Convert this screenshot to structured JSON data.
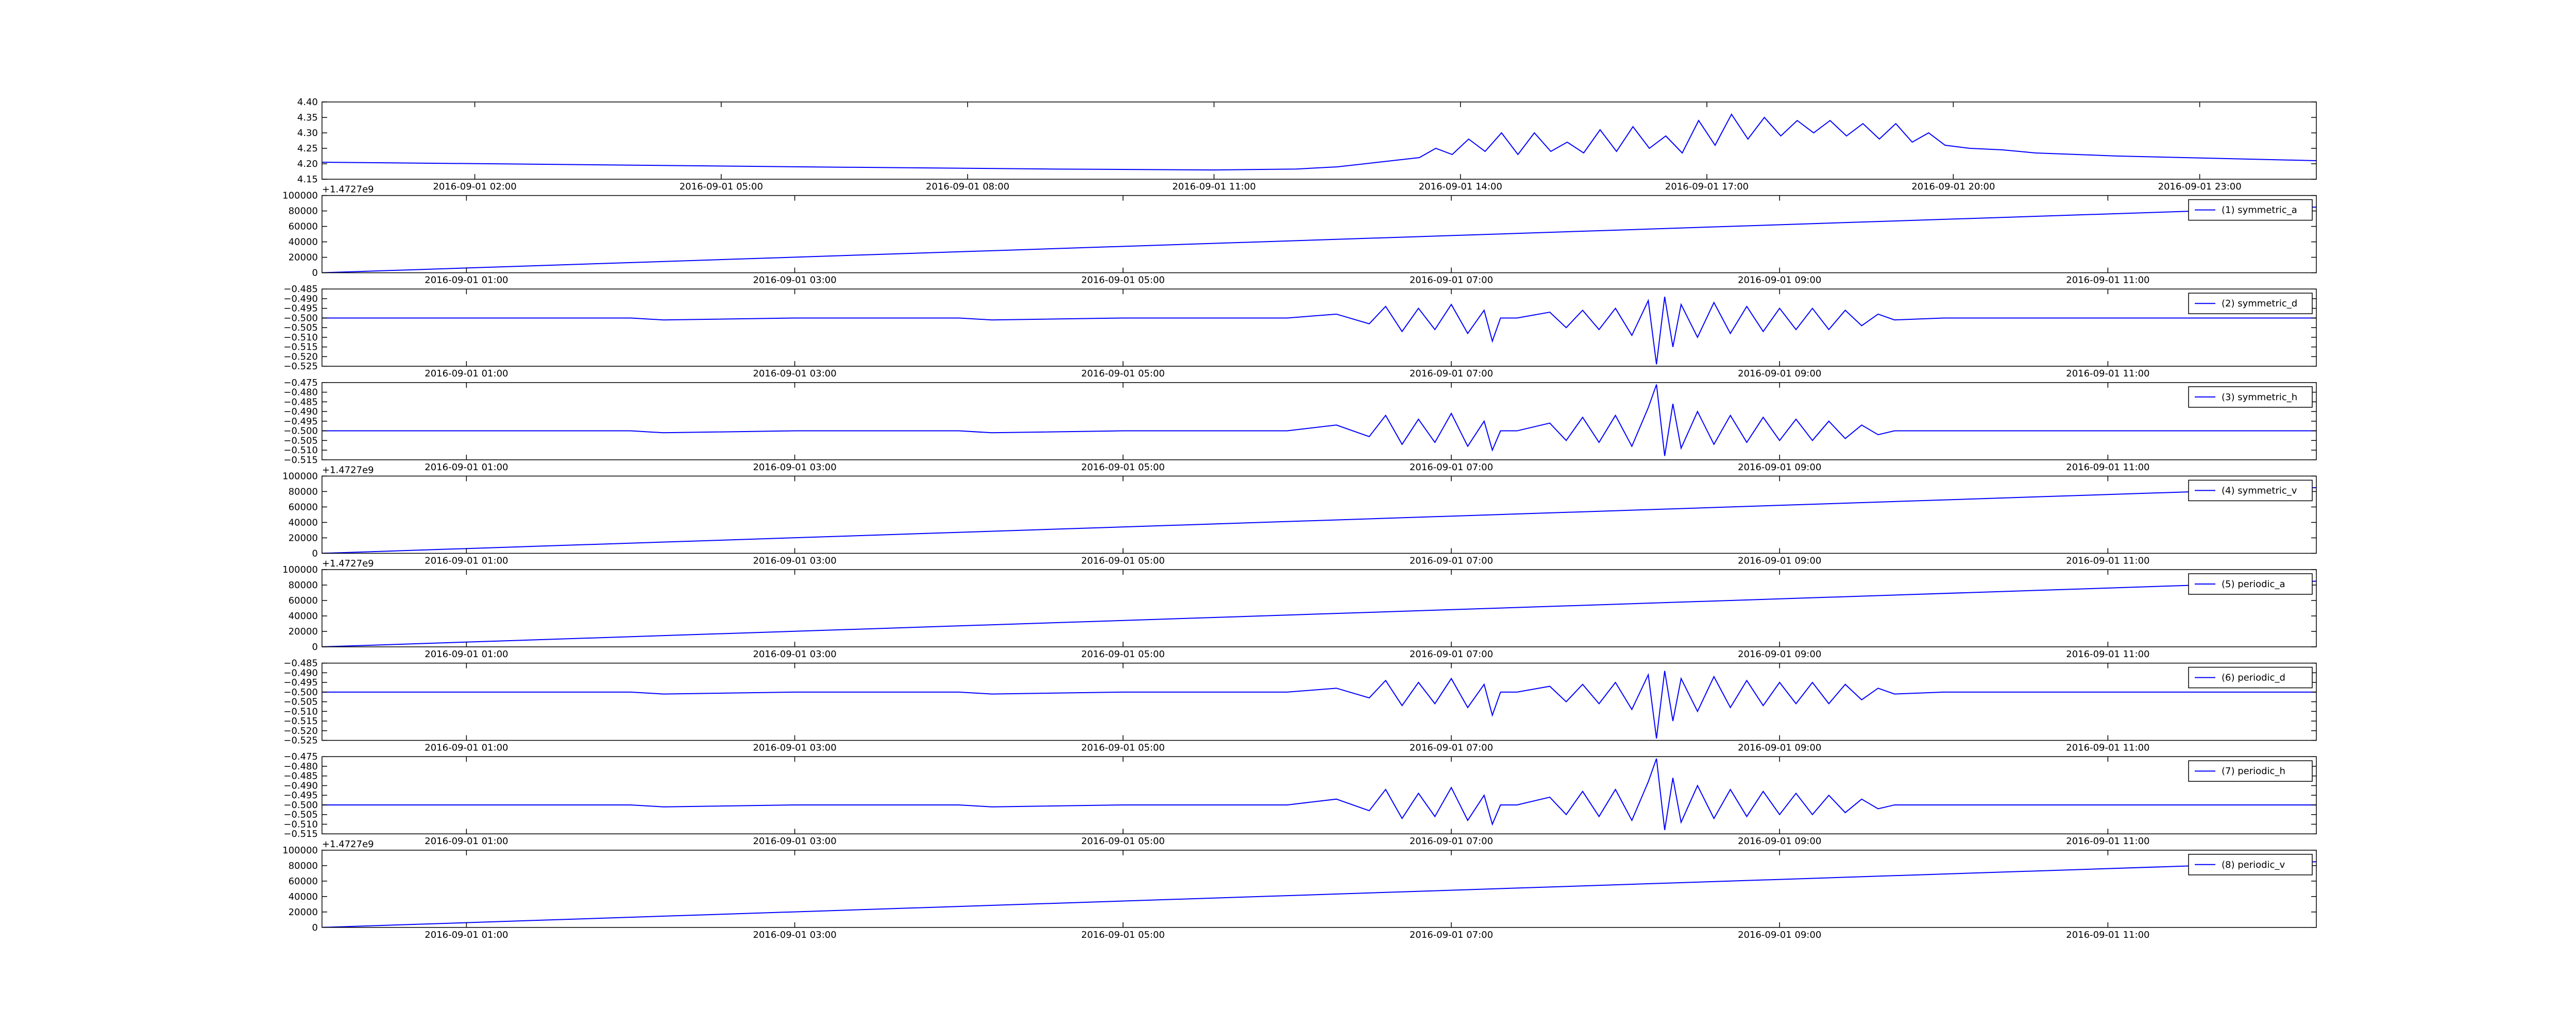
{
  "chart_data": [
    {
      "type": "line",
      "x": [
        0.14,
        3,
        6,
        9,
        11,
        12,
        12.5,
        13,
        13.5,
        13.7,
        13.9,
        14.1,
        14.3,
        14.5,
        14.7,
        14.9,
        15.1,
        15.3,
        15.5,
        15.7,
        15.9,
        16.1,
        16.3,
        16.5,
        16.7,
        16.9,
        17.1,
        17.3,
        17.5,
        17.7,
        17.9,
        18.1,
        18.3,
        18.5,
        18.7,
        18.9,
        19.1,
        19.3,
        19.5,
        19.7,
        19.9,
        20.2,
        20.6,
        21,
        22,
        24.42
      ],
      "series": [
        {
          "color": "#0000ff",
          "values": [
            4.205,
            4.198,
            4.19,
            4.183,
            4.18,
            4.183,
            4.19,
            4.205,
            4.22,
            4.25,
            4.23,
            4.28,
            4.24,
            4.3,
            4.23,
            4.3,
            4.24,
            4.27,
            4.235,
            4.31,
            4.24,
            4.32,
            4.25,
            4.29,
            4.235,
            4.34,
            4.26,
            4.36,
            4.28,
            4.35,
            4.29,
            4.34,
            4.3,
            4.34,
            4.29,
            4.33,
            4.28,
            4.33,
            4.27,
            4.3,
            4.26,
            4.25,
            4.245,
            4.235,
            4.225,
            4.21
          ]
        }
      ],
      "xlim": [
        0.14,
        24.42
      ],
      "ylim": [
        4.15,
        4.4
      ],
      "xticks": [
        {
          "value": 2,
          "label": "2016-09-01 02:00"
        },
        {
          "value": 5,
          "label": "2016-09-01 05:00"
        },
        {
          "value": 8,
          "label": "2016-09-01 08:00"
        },
        {
          "value": 11,
          "label": "2016-09-01 11:00"
        },
        {
          "value": 14,
          "label": "2016-09-01 14:00"
        },
        {
          "value": 17,
          "label": "2016-09-01 17:00"
        },
        {
          "value": 20,
          "label": "2016-09-01 20:00"
        },
        {
          "value": 23,
          "label": "2016-09-01 23:00"
        }
      ],
      "yticks": [
        {
          "value": 4.15,
          "label": "4.15"
        },
        {
          "value": 4.2,
          "label": "4.20"
        },
        {
          "value": 4.25,
          "label": "4.25"
        },
        {
          "value": 4.3,
          "label": "4.30"
        },
        {
          "value": 4.35,
          "label": "4.35"
        },
        {
          "value": 4.4,
          "label": "4.40"
        }
      ]
    },
    {
      "type": "line",
      "x": [
        0.12,
        12.27
      ],
      "series": [
        {
          "name": "(1) symmetric_a",
          "color": "#0000ff",
          "values": [
            0,
            85000
          ]
        }
      ],
      "xlim": [
        0.12,
        12.27
      ],
      "ylim": [
        0,
        100000
      ],
      "offset_text": "+1.4727e9",
      "xticks": [
        {
          "value": 1,
          "label": "2016-09-01 01:00"
        },
        {
          "value": 3,
          "label": "2016-09-01 03:00"
        },
        {
          "value": 5,
          "label": "2016-09-01 05:00"
        },
        {
          "value": 7,
          "label": "2016-09-01 07:00"
        },
        {
          "value": 9,
          "label": "2016-09-01 09:00"
        },
        {
          "value": 11,
          "label": "2016-09-01 11:00"
        }
      ],
      "yticks": [
        0,
        20000,
        40000,
        60000,
        80000,
        100000
      ]
    },
    {
      "type": "line",
      "x": [
        0.12,
        1,
        2,
        2.2,
        3,
        4,
        4.2,
        5,
        6.0,
        6.3,
        6.5,
        6.6,
        6.7,
        6.8,
        6.9,
        7.0,
        7.1,
        7.2,
        7.25,
        7.3,
        7.4,
        7.6,
        7.7,
        7.8,
        7.9,
        8.0,
        8.1,
        8.2,
        8.25,
        8.3,
        8.35,
        8.4,
        8.5,
        8.6,
        8.7,
        8.8,
        8.9,
        9.0,
        9.1,
        9.2,
        9.3,
        9.4,
        9.5,
        9.6,
        9.7,
        10,
        11,
        12.27
      ],
      "series": [
        {
          "name": "(2) symmetric_d",
          "color": "#0000ff",
          "values": [
            -0.5,
            -0.5,
            -0.5,
            -0.501,
            -0.5,
            -0.5,
            -0.501,
            -0.5,
            -0.5,
            -0.498,
            -0.503,
            -0.494,
            -0.507,
            -0.495,
            -0.506,
            -0.493,
            -0.508,
            -0.496,
            -0.512,
            -0.5,
            -0.5,
            -0.497,
            -0.505,
            -0.496,
            -0.506,
            -0.495,
            -0.509,
            -0.491,
            -0.524,
            -0.489,
            -0.515,
            -0.493,
            -0.51,
            -0.492,
            -0.508,
            -0.494,
            -0.507,
            -0.495,
            -0.506,
            -0.495,
            -0.506,
            -0.496,
            -0.504,
            -0.498,
            -0.501,
            -0.5,
            -0.5,
            -0.5
          ]
        }
      ],
      "xlim": [
        0.12,
        12.27
      ],
      "ylim": [
        -0.525,
        -0.485
      ],
      "xticks": [
        {
          "value": 1,
          "label": "2016-09-01 01:00"
        },
        {
          "value": 3,
          "label": "2016-09-01 03:00"
        },
        {
          "value": 5,
          "label": "2016-09-01 05:00"
        },
        {
          "value": 7,
          "label": "2016-09-01 07:00"
        },
        {
          "value": 9,
          "label": "2016-09-01 09:00"
        },
        {
          "value": 11,
          "label": "2016-09-01 11:00"
        }
      ],
      "yticks": [
        {
          "value": -0.525,
          "label": "−0.525"
        },
        {
          "value": -0.52,
          "label": "−0.520"
        },
        {
          "value": -0.515,
          "label": "−0.515"
        },
        {
          "value": -0.51,
          "label": "−0.510"
        },
        {
          "value": -0.505,
          "label": "−0.505"
        },
        {
          "value": -0.5,
          "label": "−0.500"
        },
        {
          "value": -0.495,
          "label": "−0.495"
        },
        {
          "value": -0.49,
          "label": "−0.490"
        },
        {
          "value": -0.485,
          "label": "−0.485"
        }
      ]
    },
    {
      "type": "line",
      "x": [
        0.12,
        1,
        2,
        2.2,
        3,
        4,
        4.2,
        5,
        6.0,
        6.3,
        6.5,
        6.6,
        6.7,
        6.8,
        6.9,
        7.0,
        7.1,
        7.2,
        7.25,
        7.3,
        7.4,
        7.6,
        7.7,
        7.8,
        7.9,
        8.0,
        8.1,
        8.2,
        8.25,
        8.3,
        8.35,
        8.4,
        8.5,
        8.6,
        8.7,
        8.8,
        8.9,
        9.0,
        9.1,
        9.2,
        9.3,
        9.4,
        9.5,
        9.6,
        9.7,
        10,
        11,
        12.27
      ],
      "series": [
        {
          "name": "(3) symmetric_h",
          "color": "#0000ff",
          "values": [
            -0.5,
            -0.5,
            -0.5,
            -0.501,
            -0.5,
            -0.5,
            -0.501,
            -0.5,
            -0.5,
            -0.497,
            -0.503,
            -0.492,
            -0.507,
            -0.494,
            -0.506,
            -0.491,
            -0.508,
            -0.495,
            -0.51,
            -0.5,
            -0.5,
            -0.496,
            -0.505,
            -0.493,
            -0.506,
            -0.492,
            -0.508,
            -0.488,
            -0.476,
            -0.513,
            -0.486,
            -0.509,
            -0.49,
            -0.507,
            -0.492,
            -0.506,
            -0.493,
            -0.505,
            -0.494,
            -0.505,
            -0.495,
            -0.504,
            -0.497,
            -0.502,
            -0.5,
            -0.5,
            -0.5,
            -0.5
          ]
        }
      ],
      "xlim": [
        0.12,
        12.27
      ],
      "ylim": [
        -0.515,
        -0.475
      ],
      "xticks": [
        {
          "value": 1,
          "label": "2016-09-01 01:00"
        },
        {
          "value": 3,
          "label": "2016-09-01 03:00"
        },
        {
          "value": 5,
          "label": "2016-09-01 05:00"
        },
        {
          "value": 7,
          "label": "2016-09-01 07:00"
        },
        {
          "value": 9,
          "label": "2016-09-01 09:00"
        },
        {
          "value": 11,
          "label": "2016-09-01 11:00"
        }
      ],
      "yticks": [
        {
          "value": -0.515,
          "label": "−0.515"
        },
        {
          "value": -0.51,
          "label": "−0.510"
        },
        {
          "value": -0.505,
          "label": "−0.505"
        },
        {
          "value": -0.5,
          "label": "−0.500"
        },
        {
          "value": -0.495,
          "label": "−0.495"
        },
        {
          "value": -0.49,
          "label": "−0.490"
        },
        {
          "value": -0.485,
          "label": "−0.485"
        },
        {
          "value": -0.48,
          "label": "−0.480"
        },
        {
          "value": -0.475,
          "label": "−0.475"
        }
      ]
    },
    {
      "type": "line",
      "x": [
        0.12,
        12.27
      ],
      "series": [
        {
          "name": "(4) symmetric_v",
          "color": "#0000ff",
          "values": [
            0,
            85000
          ]
        }
      ],
      "xlim": [
        0.12,
        12.27
      ],
      "ylim": [
        0,
        100000
      ],
      "offset_text": "+1.4727e9",
      "xticks": [
        {
          "value": 1,
          "label": "2016-09-01 01:00"
        },
        {
          "value": 3,
          "label": "2016-09-01 03:00"
        },
        {
          "value": 5,
          "label": "2016-09-01 05:00"
        },
        {
          "value": 7,
          "label": "2016-09-01 07:00"
        },
        {
          "value": 9,
          "label": "2016-09-01 09:00"
        },
        {
          "value": 11,
          "label": "2016-09-01 11:00"
        }
      ],
      "yticks": [
        0,
        20000,
        40000,
        60000,
        80000,
        100000
      ]
    },
    {
      "type": "line",
      "x": [
        0.12,
        12.27
      ],
      "series": [
        {
          "name": "(5) periodic_a",
          "color": "#0000ff",
          "values": [
            0,
            85000
          ]
        }
      ],
      "xlim": [
        0.12,
        12.27
      ],
      "ylim": [
        0,
        100000
      ],
      "offset_text": "+1.4727e9",
      "xticks": [
        {
          "value": 1,
          "label": "2016-09-01 01:00"
        },
        {
          "value": 3,
          "label": "2016-09-01 03:00"
        },
        {
          "value": 5,
          "label": "2016-09-01 05:00"
        },
        {
          "value": 7,
          "label": "2016-09-01 07:00"
        },
        {
          "value": 9,
          "label": "2016-09-01 09:00"
        },
        {
          "value": 11,
          "label": "2016-09-01 11:00"
        }
      ],
      "yticks": [
        0,
        20000,
        40000,
        60000,
        80000,
        100000
      ]
    },
    {
      "type": "line",
      "x": [
        0.12,
        1,
        2,
        2.2,
        3,
        4,
        4.2,
        5,
        6.0,
        6.3,
        6.5,
        6.6,
        6.7,
        6.8,
        6.9,
        7.0,
        7.1,
        7.2,
        7.25,
        7.3,
        7.4,
        7.6,
        7.7,
        7.8,
        7.9,
        8.0,
        8.1,
        8.2,
        8.25,
        8.3,
        8.35,
        8.4,
        8.5,
        8.6,
        8.7,
        8.8,
        8.9,
        9.0,
        9.1,
        9.2,
        9.3,
        9.4,
        9.5,
        9.6,
        9.7,
        10,
        11,
        12.27
      ],
      "series": [
        {
          "name": "(6) periodic_d",
          "color": "#0000ff",
          "values": [
            -0.5,
            -0.5,
            -0.5,
            -0.501,
            -0.5,
            -0.5,
            -0.501,
            -0.5,
            -0.5,
            -0.498,
            -0.503,
            -0.494,
            -0.507,
            -0.495,
            -0.506,
            -0.493,
            -0.508,
            -0.496,
            -0.512,
            -0.5,
            -0.5,
            -0.497,
            -0.505,
            -0.496,
            -0.506,
            -0.495,
            -0.509,
            -0.491,
            -0.524,
            -0.489,
            -0.515,
            -0.493,
            -0.51,
            -0.492,
            -0.508,
            -0.494,
            -0.507,
            -0.495,
            -0.506,
            -0.495,
            -0.506,
            -0.496,
            -0.504,
            -0.498,
            -0.501,
            -0.5,
            -0.5,
            -0.5
          ]
        }
      ],
      "xlim": [
        0.12,
        12.27
      ],
      "ylim": [
        -0.525,
        -0.485
      ],
      "xticks": [
        {
          "value": 1,
          "label": "2016-09-01 01:00"
        },
        {
          "value": 3,
          "label": "2016-09-01 03:00"
        },
        {
          "value": 5,
          "label": "2016-09-01 05:00"
        },
        {
          "value": 7,
          "label": "2016-09-01 07:00"
        },
        {
          "value": 9,
          "label": "2016-09-01 09:00"
        },
        {
          "value": 11,
          "label": "2016-09-01 11:00"
        }
      ],
      "yticks": [
        {
          "value": -0.525,
          "label": "−0.525"
        },
        {
          "value": -0.52,
          "label": "−0.520"
        },
        {
          "value": -0.515,
          "label": "−0.515"
        },
        {
          "value": -0.51,
          "label": "−0.510"
        },
        {
          "value": -0.505,
          "label": "−0.505"
        },
        {
          "value": -0.5,
          "label": "−0.500"
        },
        {
          "value": -0.495,
          "label": "−0.495"
        },
        {
          "value": -0.49,
          "label": "−0.490"
        },
        {
          "value": -0.485,
          "label": "−0.485"
        }
      ]
    },
    {
      "type": "line",
      "x": [
        0.12,
        1,
        2,
        2.2,
        3,
        4,
        4.2,
        5,
        6.0,
        6.3,
        6.5,
        6.6,
        6.7,
        6.8,
        6.9,
        7.0,
        7.1,
        7.2,
        7.25,
        7.3,
        7.4,
        7.6,
        7.7,
        7.8,
        7.9,
        8.0,
        8.1,
        8.2,
        8.25,
        8.3,
        8.35,
        8.4,
        8.5,
        8.6,
        8.7,
        8.8,
        8.9,
        9.0,
        9.1,
        9.2,
        9.3,
        9.4,
        9.5,
        9.6,
        9.7,
        10,
        11,
        12.27
      ],
      "series": [
        {
          "name": "(7) periodic_h",
          "color": "#0000ff",
          "values": [
            -0.5,
            -0.5,
            -0.5,
            -0.501,
            -0.5,
            -0.5,
            -0.501,
            -0.5,
            -0.5,
            -0.497,
            -0.503,
            -0.492,
            -0.507,
            -0.494,
            -0.506,
            -0.491,
            -0.508,
            -0.495,
            -0.51,
            -0.5,
            -0.5,
            -0.496,
            -0.505,
            -0.493,
            -0.506,
            -0.492,
            -0.508,
            -0.488,
            -0.476,
            -0.513,
            -0.486,
            -0.509,
            -0.49,
            -0.507,
            -0.492,
            -0.506,
            -0.493,
            -0.505,
            -0.494,
            -0.505,
            -0.495,
            -0.504,
            -0.497,
            -0.502,
            -0.5,
            -0.5,
            -0.5,
            -0.5
          ]
        }
      ],
      "xlim": [
        0.12,
        12.27
      ],
      "ylim": [
        -0.515,
        -0.475
      ],
      "xticks": [
        {
          "value": 1,
          "label": "2016-09-01 01:00"
        },
        {
          "value": 3,
          "label": "2016-09-01 03:00"
        },
        {
          "value": 5,
          "label": "2016-09-01 05:00"
        },
        {
          "value": 7,
          "label": "2016-09-01 07:00"
        },
        {
          "value": 9,
          "label": "2016-09-01 09:00"
        },
        {
          "value": 11,
          "label": "2016-09-01 11:00"
        }
      ],
      "yticks": [
        {
          "value": -0.515,
          "label": "−0.515"
        },
        {
          "value": -0.51,
          "label": "−0.510"
        },
        {
          "value": -0.505,
          "label": "−0.505"
        },
        {
          "value": -0.5,
          "label": "−0.500"
        },
        {
          "value": -0.495,
          "label": "−0.495"
        },
        {
          "value": -0.49,
          "label": "−0.490"
        },
        {
          "value": -0.485,
          "label": "−0.485"
        },
        {
          "value": -0.48,
          "label": "−0.480"
        },
        {
          "value": -0.475,
          "label": "−0.475"
        }
      ]
    },
    {
      "type": "line",
      "x": [
        0.12,
        12.27
      ],
      "series": [
        {
          "name": "(8) periodic_v",
          "color": "#0000ff",
          "values": [
            0,
            85000
          ]
        }
      ],
      "xlim": [
        0.12,
        12.27
      ],
      "ylim": [
        0,
        100000
      ],
      "offset_text": "+1.4727e9",
      "xticks": [
        {
          "value": 1,
          "label": "2016-09-01 01:00"
        },
        {
          "value": 3,
          "label": "2016-09-01 03:00"
        },
        {
          "value": 5,
          "label": "2016-09-01 05:00"
        },
        {
          "value": 7,
          "label": "2016-09-01 07:00"
        },
        {
          "value": 9,
          "label": "2016-09-01 09:00"
        },
        {
          "value": 11,
          "label": "2016-09-01 11:00"
        }
      ],
      "yticks": [
        0,
        20000,
        40000,
        60000,
        80000,
        100000
      ]
    }
  ]
}
